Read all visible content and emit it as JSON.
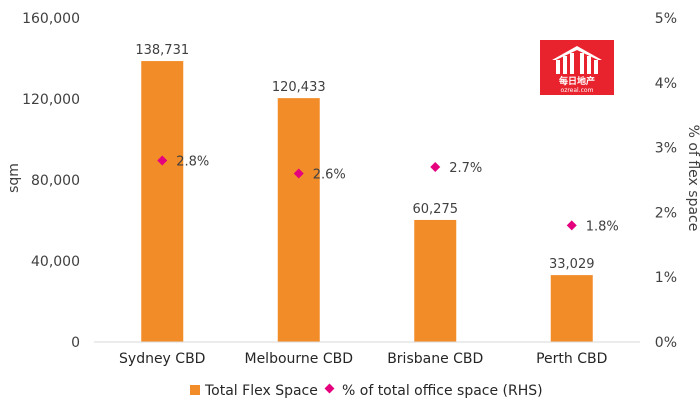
{
  "colors": {
    "bar": "#f28c28",
    "marker": "#e5007e",
    "axis": "#d9d9d9",
    "logo": "#e8232e"
  },
  "logo": {
    "icon": "house-logo-icon",
    "text": "每日地产",
    "url_text": "ozreal.com"
  },
  "chart_data": {
    "type": "bar",
    "categories": [
      "Sydney CBD",
      "Melbourne CBD",
      "Brisbane CBD",
      "Perth CBD"
    ],
    "series": [
      {
        "name": "Total Flex Space",
        "type": "bar",
        "axis": "left",
        "values": [
          138731,
          120433,
          60275,
          33029
        ],
        "labels": [
          "138,731",
          "120,433",
          "60,275",
          "33,029"
        ]
      },
      {
        "name": "% of total office space (RHS)",
        "type": "scatter",
        "marker": "diamond",
        "axis": "right",
        "values": [
          2.8,
          2.6,
          2.7,
          1.8
        ],
        "labels": [
          "2.8%",
          "2.6%",
          "2.7%",
          "1.8%"
        ]
      }
    ],
    "ylabel": "sqm",
    "y2label": "% of flex space",
    "ylim": [
      0,
      160000
    ],
    "y2lim": [
      0,
      5
    ],
    "yticks": [
      "0",
      "40,000",
      "80,000",
      "120,000",
      "160,000"
    ],
    "y2ticks": [
      "0%",
      "1%",
      "2%",
      "3%",
      "4%",
      "5%"
    ],
    "legend": "bottom",
    "grid": false
  }
}
